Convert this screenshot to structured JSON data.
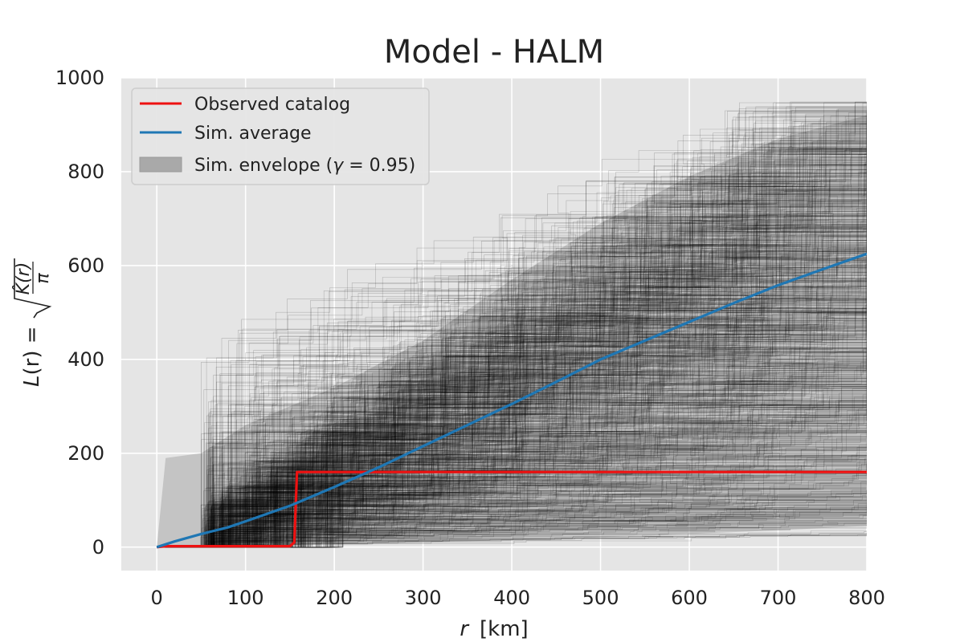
{
  "chart_data": {
    "type": "line",
    "title": "Model - HALM",
    "xlabel": "r  [km]",
    "ylabel": "L(r) = sqrt(K̂(r)/π)",
    "xlim": [
      -40,
      800
    ],
    "ylim": [
      -50,
      1000
    ],
    "xticks": [
      0,
      100,
      200,
      300,
      400,
      500,
      600,
      700,
      800
    ],
    "yticks": [
      0,
      200,
      400,
      600,
      800,
      1000
    ],
    "grid": true,
    "legend_position": "top-left",
    "colors": {
      "background": "#e5e5e5",
      "grid": "#ffffff",
      "observed": "#ee1111",
      "average": "#1f77b4",
      "envelope": "#a9a9a9",
      "simulations": "#000000"
    },
    "series": [
      {
        "name": "Observed catalog",
        "x": [
          0,
          10,
          150,
          155,
          158,
          170,
          200,
          300,
          400,
          500,
          600,
          700,
          800
        ],
        "y": [
          0,
          2,
          2,
          10,
          160,
          160,
          160,
          160,
          160,
          160,
          160,
          160,
          160
        ]
      },
      {
        "name": "Sim. average",
        "x": [
          0,
          20,
          50,
          80,
          100,
          150,
          200,
          250,
          300,
          350,
          400,
          450,
          500,
          550,
          600,
          650,
          700,
          750,
          800
        ],
        "y": [
          0,
          12,
          28,
          42,
          55,
          88,
          128,
          170,
          215,
          260,
          305,
          352,
          400,
          440,
          480,
          520,
          558,
          592,
          625
        ]
      },
      {
        "name": "Sim. envelope (γ = 0.95)",
        "x": [
          0,
          10,
          50,
          100,
          200,
          300,
          400,
          500,
          600,
          700,
          800
        ],
        "upper": [
          0,
          190,
          200,
          260,
          340,
          440,
          570,
          690,
          790,
          870,
          920
        ],
        "lower": [
          0,
          0,
          1,
          3,
          6,
          10,
          15,
          21,
          28,
          36,
          45
        ]
      }
    ],
    "simulation_count": 1000
  },
  "legend": {
    "observed_label": "Observed catalog",
    "average_label": "Sim. average",
    "envelope_label_prefix": "Sim. envelope (",
    "envelope_gamma_symbol": "γ",
    "envelope_label_suffix": " = 0.95)"
  },
  "axes": {
    "ylabel_lhs": "L",
    "ylabel_paren": "(r) =",
    "ylabel_frac_top": "K̂(r)",
    "ylabel_frac_bottom": "π",
    "xlabel_var": "r",
    "xlabel_unit": "[km]"
  }
}
